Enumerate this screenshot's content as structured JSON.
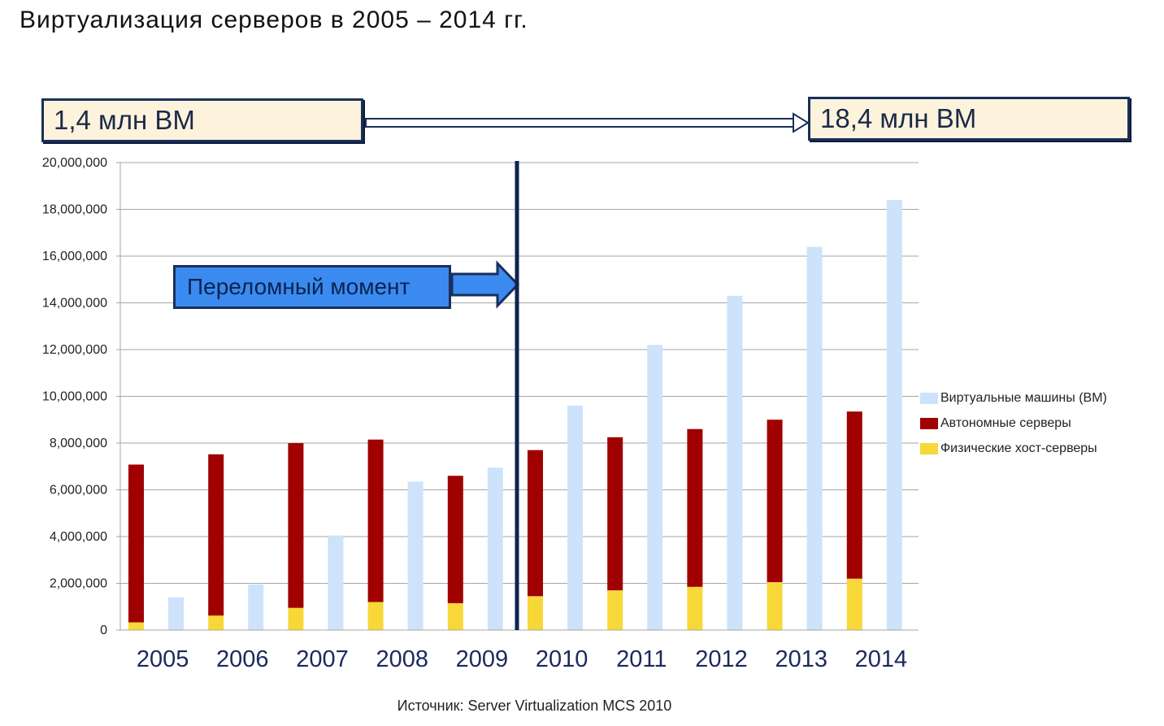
{
  "title": "Виртуализация серверов в 2005 – 2014 гг.",
  "callouts": {
    "start": "1,4 млн ВМ",
    "end": "18,4 млн ВМ",
    "turning_point": "Переломный момент"
  },
  "source": "Источник: Server Virtualization MCS 2010",
  "colors": {
    "vm": "#cce3fb",
    "standalone": "#a00000",
    "hosts": "#f7d838",
    "grid": "#a6a6a6",
    "axis_labels": "#1b2a5c",
    "callout_border": "#1a2f5a"
  },
  "chart_data": {
    "type": "bar",
    "stacked_series": [
      "Физические хост-серверы",
      "Автономные серверы"
    ],
    "categories": [
      "2005",
      "2006",
      "2007",
      "2008",
      "2009",
      "2010",
      "2011",
      "2012",
      "2013",
      "2014"
    ],
    "series": [
      {
        "name": "Виртуальные машины (ВМ)",
        "values": [
          1400000,
          1950000,
          4050000,
          6350000,
          6950000,
          9600000,
          12200000,
          14300000,
          16400000,
          18400000
        ]
      },
      {
        "name": "Автономные серверы",
        "values": [
          6750000,
          6900000,
          7050000,
          6950000,
          5450000,
          6250000,
          6550000,
          6750000,
          6950000,
          7150000
        ]
      },
      {
        "name": "Физические хост-серверы",
        "values": [
          330000,
          620000,
          950000,
          1200000,
          1150000,
          1450000,
          1700000,
          1850000,
          2050000,
          2200000
        ]
      }
    ],
    "ylim": [
      0,
      20000000
    ],
    "yticks": [
      "0",
      "2,000,000",
      "4,000,000",
      "6,000,000",
      "8,000,000",
      "10,000,000",
      "12,000,000",
      "14,000,000",
      "16,000,000",
      "18,000,000",
      "20,000,000"
    ],
    "marker_between": [
      "2009",
      "2010"
    ],
    "grid": true,
    "legend": "right"
  }
}
